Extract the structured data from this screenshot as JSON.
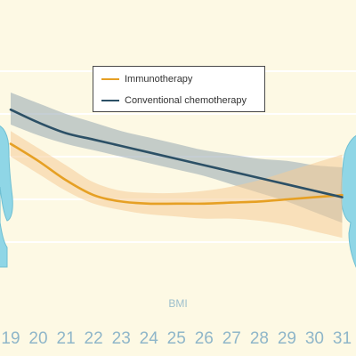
{
  "chart_data": {
    "type": "line",
    "xlabel": "BMI",
    "ylabel": "",
    "x": [
      19,
      20,
      21,
      22,
      23,
      24,
      25,
      26,
      27,
      28,
      29,
      30,
      31
    ],
    "xlim": [
      18.5,
      31.5
    ],
    "ylim": [
      0,
      1
    ],
    "grid": true,
    "legend": "top",
    "series": [
      {
        "name": "Immunotherapy",
        "color": "#e6a024",
        "band_color": "#f6cc98",
        "x": [
          19,
          20,
          21,
          22,
          23,
          24,
          25,
          26,
          27,
          28,
          29,
          30,
          31
        ],
        "values": [
          0.66,
          0.58,
          0.49,
          0.42,
          0.39,
          0.38,
          0.38,
          0.38,
          0.385,
          0.39,
          0.4,
          0.41,
          0.42
        ],
        "lower": [
          0.6,
          0.52,
          0.44,
          0.38,
          0.35,
          0.33,
          0.32,
          0.31,
          0.31,
          0.3,
          0.28,
          0.25,
          0.22
        ],
        "upper": [
          0.72,
          0.64,
          0.56,
          0.48,
          0.44,
          0.43,
          0.43,
          0.44,
          0.46,
          0.49,
          0.53,
          0.57,
          0.61
        ]
      },
      {
        "name": "Conventional chemotherapy",
        "color": "#2c5066",
        "band_color": "#9fadb6",
        "x": [
          19,
          20,
          21,
          22,
          23,
          24,
          25,
          26,
          27,
          28,
          29,
          30,
          31
        ],
        "values": [
          0.82,
          0.76,
          0.71,
          0.68,
          0.65,
          0.62,
          0.59,
          0.56,
          0.53,
          0.5,
          0.47,
          0.44,
          0.41
        ],
        "lower": [
          0.75,
          0.7,
          0.66,
          0.63,
          0.6,
          0.57,
          0.54,
          0.51,
          0.47,
          0.43,
          0.39,
          0.34,
          0.29
        ],
        "upper": [
          0.9,
          0.85,
          0.8,
          0.76,
          0.72,
          0.69,
          0.66,
          0.63,
          0.61,
          0.59,
          0.58,
          0.56,
          0.55
        ]
      }
    ]
  },
  "colors": {
    "background": "#fdf9e4",
    "figure": "#8fd6e6",
    "gridline": "#ffffff"
  },
  "icons": [
    "human-figure-icon-left",
    "human-figure-icon-right"
  ]
}
